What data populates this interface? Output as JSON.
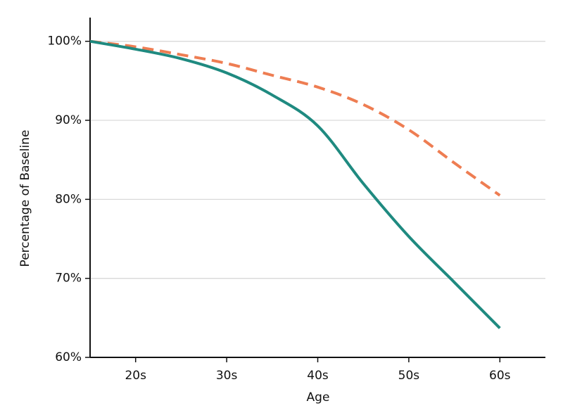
{
  "chart_data": {
    "type": "line",
    "x_label": "Age",
    "y_label": "Percentage of Baseline",
    "x": [
      15,
      20,
      25,
      30,
      35,
      40,
      45,
      50,
      55,
      60
    ],
    "xlim": [
      15,
      65
    ],
    "xticks": [
      {
        "value": 20,
        "label": "20s"
      },
      {
        "value": 30,
        "label": "30s"
      },
      {
        "value": 40,
        "label": "40s"
      },
      {
        "value": 50,
        "label": "50s"
      },
      {
        "value": 60,
        "label": "60s"
      }
    ],
    "ylim": [
      60,
      103
    ],
    "yticks": [
      {
        "value": 60,
        "label": "60%"
      },
      {
        "value": 70,
        "label": "70%"
      },
      {
        "value": 80,
        "label": "80%"
      },
      {
        "value": 90,
        "label": "90%"
      },
      {
        "value": 100,
        "label": "100%"
      }
    ],
    "grid": true,
    "series": [
      {
        "color": "#1f8a80",
        "style": "solid",
        "values": [
          100,
          99,
          97.8,
          96,
          93.2,
          89.3,
          82,
          75.3,
          69.5,
          63.7
        ]
      },
      {
        "color": "#ee7d52",
        "style": "dashed",
        "values": [
          100,
          99.3,
          98.3,
          97.2,
          95.7,
          94.2,
          92,
          88.8,
          84.6,
          80.5
        ]
      }
    ]
  }
}
